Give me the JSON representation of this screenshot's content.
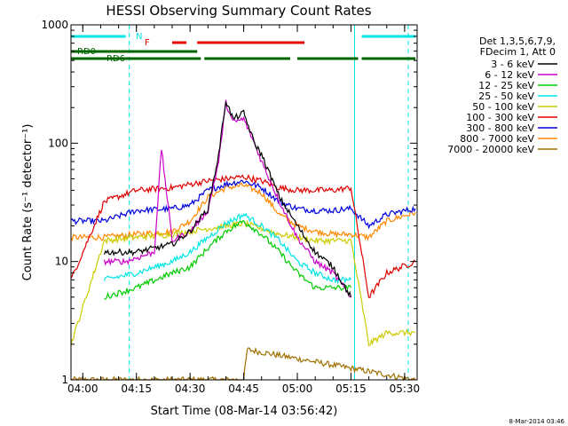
{
  "chart_data": {
    "type": "line",
    "title": "HESSI Observing Summary Count Rates",
    "xlabel": "Start Time (08-Mar-14 03:56:42)",
    "ylabel": "Count Rate (s⁻¹ detector⁻¹)",
    "xscale": "time",
    "yscale": "log",
    "xlim": [
      "03:56:42",
      "05:33:30"
    ],
    "ylim": [
      1,
      1000
    ],
    "x_ticks": [
      "04:00",
      "04:15",
      "04:30",
      "04:45",
      "05:00",
      "05:15",
      "05:30"
    ],
    "y_ticks": [
      "1",
      "10",
      "100",
      "1000"
    ],
    "grid": false,
    "legend_position": "top-right",
    "legend_header": [
      "Det 1,3,5,6,7,9,",
      "FDecim 1, Att 0"
    ],
    "series": [
      {
        "name": "3 - 6 keV",
        "color": "#000000",
        "x": [
          "04:06",
          "04:15",
          "04:25",
          "04:30",
          "04:35",
          "04:38",
          "04:40",
          "04:42",
          "04:45",
          "04:48",
          "04:50",
          "04:55",
          "05:00",
          "05:05",
          "05:10",
          "05:15"
        ],
        "values": [
          12,
          12,
          14,
          18,
          28,
          80,
          230,
          160,
          180,
          100,
          80,
          35,
          20,
          12,
          9,
          5
        ]
      },
      {
        "name": "6 - 12 keV",
        "color": "#cc00cc",
        "x": [
          "04:06",
          "04:12",
          "04:20",
          "04:22",
          "04:25",
          "04:30",
          "04:35",
          "04:38",
          "04:40",
          "04:42",
          "04:45",
          "04:48",
          "04:50",
          "04:55",
          "05:00",
          "05:05",
          "05:10",
          "05:15"
        ],
        "values": [
          10,
          10,
          12,
          90,
          15,
          18,
          27,
          70,
          220,
          150,
          160,
          100,
          70,
          32,
          16,
          10,
          8,
          5
        ]
      },
      {
        "name": "12 - 25 keV",
        "color": "#00cc00",
        "x": [
          "04:06",
          "04:15",
          "04:25",
          "04:30",
          "04:35",
          "04:40",
          "04:45",
          "04:50",
          "04:55",
          "05:00",
          "05:05",
          "05:10",
          "05:15"
        ],
        "values": [
          5,
          6,
          8,
          9,
          13,
          18,
          22,
          17,
          12,
          8,
          6,
          6,
          6
        ]
      },
      {
        "name": "25 - 50 keV",
        "color": "#00e5e5",
        "x": [
          "04:06",
          "04:15",
          "04:25",
          "04:30",
          "04:35",
          "04:40",
          "04:45",
          "04:50",
          "04:55",
          "05:00",
          "05:05",
          "05:10",
          "05:15"
        ],
        "values": [
          7,
          8,
          10,
          12,
          16,
          21,
          25,
          20,
          15,
          10,
          8,
          7,
          7
        ]
      },
      {
        "name": "50 - 100 keV",
        "color": "#cccc00",
        "x": [
          "03:56:42",
          "04:06",
          "04:15",
          "04:25",
          "04:30",
          "04:35",
          "04:40",
          "04:45",
          "04:50",
          "04:55",
          "05:00",
          "05:05",
          "05:10",
          "05:15",
          "05:20",
          "05:25",
          "05:33"
        ],
        "values": [
          2,
          15,
          16,
          17,
          18,
          19,
          20,
          21,
          19,
          17,
          16,
          15,
          15,
          15,
          2,
          2.5,
          2.5
        ]
      },
      {
        "name": "100 - 300 keV",
        "color": "#e00000",
        "x": [
          "03:56:42",
          "04:06",
          "04:15",
          "04:25",
          "04:30",
          "04:35",
          "04:40",
          "04:45",
          "04:50",
          "04:55",
          "05:00",
          "05:05",
          "05:10",
          "05:15",
          "05:20",
          "05:25",
          "05:33"
        ],
        "values": [
          7,
          32,
          40,
          42,
          45,
          48,
          50,
          52,
          48,
          42,
          40,
          40,
          40,
          42,
          5,
          8,
          10
        ]
      },
      {
        "name": "300 - 800 keV",
        "color": "#0000e0",
        "x": [
          "03:56:42",
          "04:06",
          "04:15",
          "04:25",
          "04:30",
          "04:35",
          "04:40",
          "04:45",
          "04:50",
          "04:55",
          "05:00",
          "05:05",
          "05:10",
          "05:15",
          "05:20",
          "05:25",
          "05:33"
        ],
        "values": [
          22,
          22,
          27,
          28,
          30,
          40,
          45,
          48,
          42,
          32,
          28,
          27,
          27,
          28,
          20,
          25,
          28
        ]
      },
      {
        "name": "800 - 7000 keV",
        "color": "#ff8800",
        "x": [
          "03:56:42",
          "04:06",
          "04:15",
          "04:25",
          "04:30",
          "04:35",
          "04:40",
          "04:45",
          "04:50",
          "04:55",
          "05:00",
          "05:05",
          "05:10",
          "05:15",
          "05:20",
          "05:25",
          "05:33"
        ],
        "values": [
          16,
          16,
          17,
          18,
          22,
          35,
          42,
          44,
          38,
          25,
          20,
          18,
          17,
          17,
          16,
          22,
          26
        ]
      },
      {
        "name": "7000 - 20000 keV",
        "color": "#a07000",
        "x": [
          "03:56:42",
          "04:45",
          "04:46",
          "05:33"
        ],
        "values": [
          1,
          1,
          1.8,
          1
        ]
      }
    ],
    "annotations": [
      "N",
      "F",
      "RD0",
      "RD6"
    ],
    "flags": [
      {
        "label": "N",
        "color": "#00e5e5",
        "segments": [
          [
            "03:56:42",
            "04:12"
          ],
          [
            "05:18",
            "05:33"
          ]
        ]
      },
      {
        "label": "F",
        "color": "#e00000",
        "segments": [
          [
            "04:25",
            "04:29"
          ],
          [
            "04:32",
            "05:02"
          ]
        ]
      },
      {
        "label": "RD0",
        "color": "#006600",
        "segments": [
          [
            "03:56:42",
            "04:32"
          ]
        ]
      },
      {
        "label": "RD6",
        "color": "#006600",
        "segments": [
          [
            "03:56:42",
            "04:33"
          ],
          [
            "04:34",
            "04:58"
          ],
          [
            "05:00",
            "05:17"
          ],
          [
            "05:18",
            "05:33"
          ]
        ]
      }
    ],
    "vertical_markers": [
      {
        "x": "04:13",
        "style": "dashed",
        "color": "#00e5e5"
      },
      {
        "x": "05:16",
        "style": "solid",
        "color": "#00e5e5"
      },
      {
        "x": "05:31",
        "style": "dashed",
        "color": "#00e5e5"
      }
    ],
    "footer_date": "8-Mar-2014 03:46"
  }
}
